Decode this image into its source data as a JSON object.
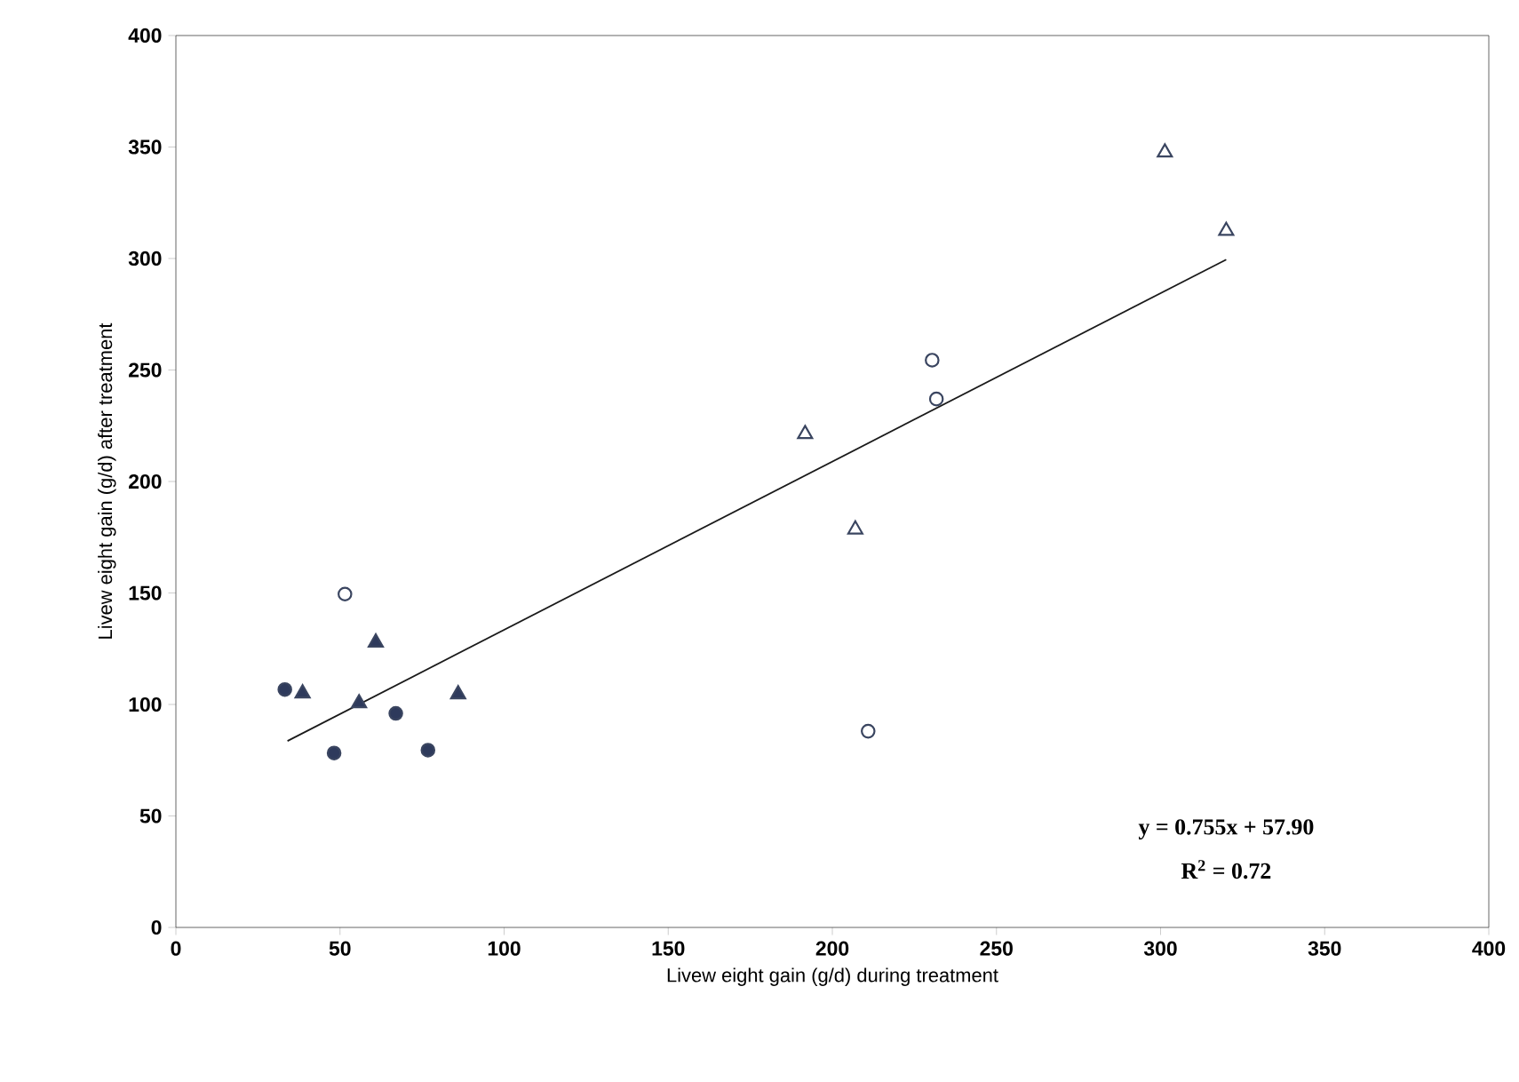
{
  "chart_data": {
    "type": "scatter",
    "xlabel": "Livew eight gain (g/d) during treatment",
    "ylabel": "Livew eight gain (g/d) after treatment",
    "xlim": [
      0,
      400
    ],
    "ylim": [
      0,
      400
    ],
    "xticks": [
      0,
      50,
      100,
      150,
      200,
      250,
      300,
      350,
      400
    ],
    "yticks": [
      0,
      50,
      100,
      150,
      200,
      250,
      300,
      350,
      400
    ],
    "grid": false,
    "series": [
      {
        "color": "#2e3a5c",
        "marker": "circle",
        "x": [
          33.2,
          48.2,
          67,
          76.8
        ],
        "values": [
          106.7,
          78.2,
          96,
          79.5
        ]
      },
      {
        "color": "#2e3a5c",
        "marker": "triangle",
        "x": [
          38.6,
          55.8,
          60.9,
          86
        ],
        "values": [
          105,
          100.6,
          127.8,
          104.6
        ]
      },
      {
        "color": "#ffffff",
        "marker": "circle",
        "x": [
          51.5,
          230.4,
          231.7,
          210.9
        ],
        "values": [
          149.5,
          254.4,
          237,
          88
        ]
      },
      {
        "color": "#ffffff",
        "marker": "triangle",
        "x": [
          191.7,
          207,
          301.3,
          320
        ],
        "values": [
          221.3,
          178.5,
          347.6,
          312.4
        ]
      },
      {
        "type": "line",
        "color": "#1a1a1a",
        "marker": "none",
        "line_style": "solid",
        "x": [
          34,
          320
        ],
        "values": [
          83.6,
          299.5
        ]
      }
    ],
    "annotations": [
      "y = 0.755x + 57.90",
      "R$^{2}$ = 0.72"
    ]
  }
}
